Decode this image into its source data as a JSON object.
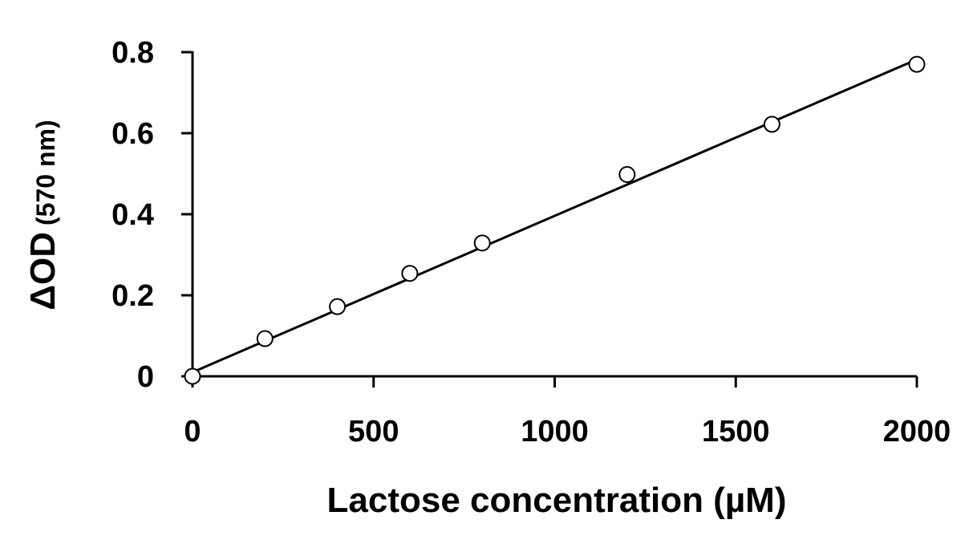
{
  "chart_data": {
    "type": "scatter",
    "x": [
      0,
      200,
      400,
      600,
      800,
      1200,
      1600,
      2000
    ],
    "y": [
      0.0,
      0.093,
      0.172,
      0.254,
      0.329,
      0.498,
      0.622,
      0.77
    ],
    "fit_line": {
      "x": [
        0,
        2000
      ],
      "y": [
        0.01,
        0.782
      ]
    },
    "xlabel": "Lactose concentration (µM)",
    "ylabel_main": "ΔOD",
    "ylabel_unit": "(570 nm)",
    "xlim": [
      0,
      2000
    ],
    "ylim": [
      0,
      0.8
    ],
    "x_ticks": [
      0,
      500,
      1000,
      1500,
      2000
    ],
    "x_tick_labels": [
      "0",
      "500",
      "1000",
      "1500",
      "2000"
    ],
    "y_ticks": [
      0,
      0.2,
      0.4,
      0.6,
      0.8
    ],
    "y_tick_labels": [
      "0",
      "0.2",
      "0.4",
      "0.6",
      "0.8"
    ],
    "grid": false,
    "marker": "open-circle",
    "colors": {
      "marks": "#000000",
      "marker_fill": "#ffffff",
      "background": "#ffffff"
    }
  }
}
